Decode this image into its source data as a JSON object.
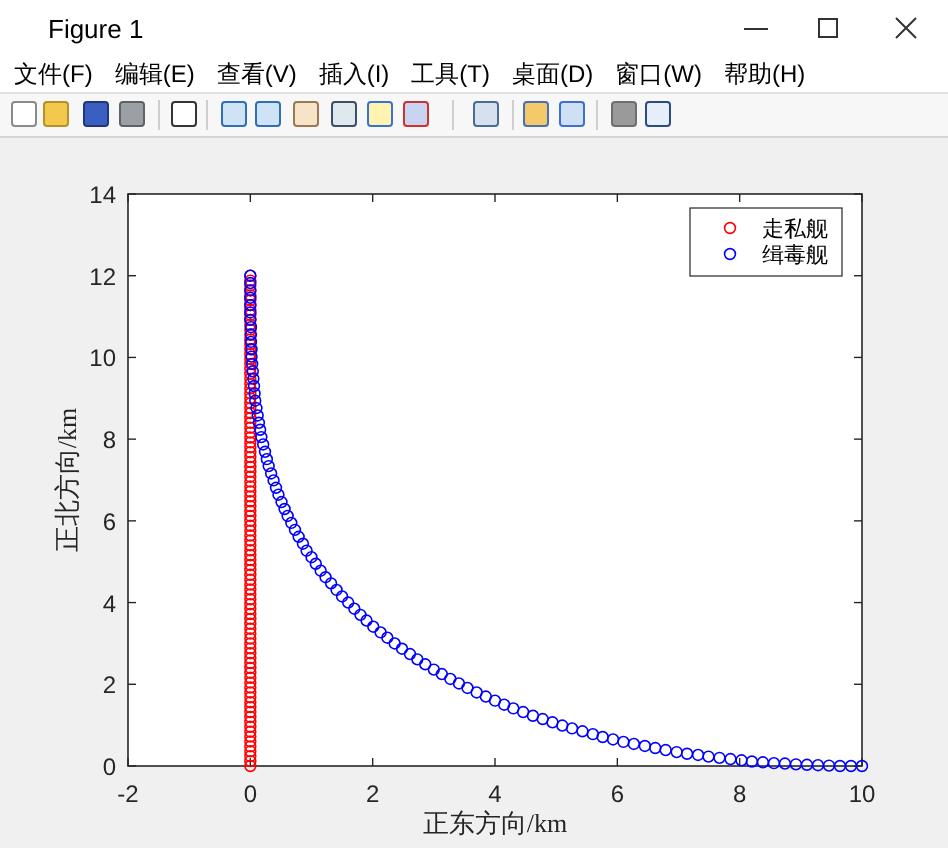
{
  "chart_data": {
    "type": "scatter",
    "xlabel": "正东方向/km",
    "ylabel": "正北方向/km",
    "xlim": [
      -2,
      10
    ],
    "ylim": [
      0,
      14
    ],
    "xticks": [
      -2,
      0,
      2,
      4,
      6,
      8,
      10
    ],
    "yticks": [
      0,
      2,
      4,
      6,
      8,
      10,
      12,
      14
    ],
    "legend": "top right",
    "marker": "circle",
    "annotations": [
      "Figure 1",
      "文件(F)",
      "编辑(E)",
      "查看(V)",
      "插入(I)",
      "工具(T)",
      "桌面(D)",
      "窗口(W)",
      "帮助(H)"
    ],
    "series": [
      {
        "name": "走私舰",
        "color": "#ff0000",
        "x": [
          0,
          0,
          0,
          0,
          0,
          0,
          0,
          0,
          0,
          0,
          0,
          0,
          0,
          0,
          0,
          0,
          0,
          0,
          0,
          0,
          0,
          0,
          0,
          0,
          0,
          0,
          0,
          0,
          0,
          0,
          0,
          0,
          0,
          0,
          0,
          0,
          0,
          0,
          0,
          0,
          0,
          0,
          0,
          0,
          0,
          0,
          0,
          0,
          0,
          0,
          0,
          0,
          0,
          0,
          0,
          0,
          0,
          0,
          0,
          0,
          0,
          0,
          0,
          0,
          0,
          0,
          0,
          0,
          0,
          0,
          0,
          0,
          0,
          0,
          0,
          0,
          0,
          0,
          0,
          0,
          0,
          0,
          0,
          0,
          0,
          0,
          0,
          0,
          0,
          0,
          0,
          0,
          0,
          0,
          0,
          0,
          0,
          0,
          0,
          0,
          0
        ],
        "values": [
          0,
          0.12,
          0.24,
          0.36,
          0.48,
          0.6,
          0.72,
          0.84,
          0.96,
          1.08,
          1.2,
          1.32,
          1.44,
          1.56,
          1.68,
          1.8,
          1.92,
          2.04,
          2.16,
          2.28,
          2.4,
          2.52,
          2.64,
          2.76,
          2.88,
          3,
          3.12,
          3.24,
          3.36,
          3.48,
          3.6,
          3.72,
          3.84,
          3.96,
          4.08,
          4.2,
          4.32,
          4.44,
          4.56,
          4.68,
          4.8,
          4.92,
          5.04,
          5.16,
          5.28,
          5.4,
          5.52,
          5.64,
          5.76,
          5.88,
          6,
          6.12,
          6.24,
          6.36,
          6.48,
          6.6,
          6.72,
          6.84,
          6.96,
          7.08,
          7.2,
          7.32,
          7.44,
          7.56,
          7.68,
          7.8,
          7.92,
          8.04,
          8.16,
          8.28,
          8.4,
          8.52,
          8.64,
          8.76,
          8.88,
          9,
          9.12,
          9.24,
          9.36,
          9.48,
          9.6,
          9.72,
          9.84,
          9.96,
          10.08,
          10.2,
          10.32,
          10.44,
          10.56,
          10.68,
          10.8,
          10.92,
          11.04,
          11.16,
          11.28,
          11.4,
          11.52,
          11.64,
          11.76,
          11.88,
          12
        ]
      },
      {
        "name": "缉毒舰",
        "color": "#0000ff",
        "x": [
          10.0,
          9.82,
          9.64,
          9.46,
          9.28,
          9.1,
          8.92,
          8.74,
          8.56,
          8.38,
          8.2,
          8.03,
          7.85,
          7.67,
          7.49,
          7.32,
          7.14,
          6.97,
          6.79,
          6.62,
          6.45,
          6.27,
          6.1,
          5.93,
          5.76,
          5.6,
          5.43,
          5.26,
          5.1,
          4.94,
          4.78,
          4.62,
          4.46,
          4.3,
          4.15,
          4.0,
          3.85,
          3.7,
          3.55,
          3.41,
          3.27,
          3.13,
          3.0,
          2.86,
          2.73,
          2.61,
          2.48,
          2.36,
          2.24,
          2.13,
          2.01,
          1.9,
          1.8,
          1.7,
          1.6,
          1.5,
          1.41,
          1.32,
          1.23,
          1.15,
          1.07,
          1.0,
          0.92,
          0.86,
          0.79,
          0.73,
          0.67,
          0.61,
          0.56,
          0.51,
          0.46,
          0.42,
          0.38,
          0.34,
          0.3,
          0.27,
          0.24,
          0.21,
          0.18,
          0.16,
          0.14,
          0.12,
          0.1,
          0.08,
          0.07,
          0.06,
          0.05,
          0.04,
          0.03,
          0.02,
          0.02,
          0.01,
          0.01,
          0.01,
          0.0,
          0.0,
          0.0,
          0.0,
          0.0,
          0.0,
          0.0
        ],
        "values": [
          0.0,
          0.0,
          0.0,
          0.01,
          0.02,
          0.03,
          0.04,
          0.06,
          0.07,
          0.09,
          0.11,
          0.14,
          0.17,
          0.2,
          0.23,
          0.27,
          0.3,
          0.34,
          0.39,
          0.44,
          0.49,
          0.54,
          0.59,
          0.65,
          0.71,
          0.78,
          0.85,
          0.92,
          0.99,
          1.07,
          1.15,
          1.23,
          1.32,
          1.41,
          1.5,
          1.6,
          1.7,
          1.8,
          1.91,
          2.02,
          2.13,
          2.25,
          2.36,
          2.49,
          2.61,
          2.74,
          2.87,
          3.0,
          3.14,
          3.27,
          3.41,
          3.56,
          3.7,
          3.85,
          4.0,
          4.15,
          4.31,
          4.47,
          4.62,
          4.78,
          4.95,
          5.11,
          5.27,
          5.44,
          5.61,
          5.78,
          5.95,
          6.12,
          6.29,
          6.46,
          6.64,
          6.81,
          6.99,
          7.16,
          7.34,
          7.51,
          7.69,
          7.87,
          8.05,
          8.23,
          8.4,
          8.58,
          8.76,
          8.94,
          9.12,
          9.3,
          9.48,
          9.66,
          9.84,
          10.02,
          10.2,
          10.38,
          10.56,
          10.74,
          10.92,
          11.1,
          11.28,
          11.46,
          11.64,
          11.82,
          12.0
        ]
      }
    ]
  }
}
